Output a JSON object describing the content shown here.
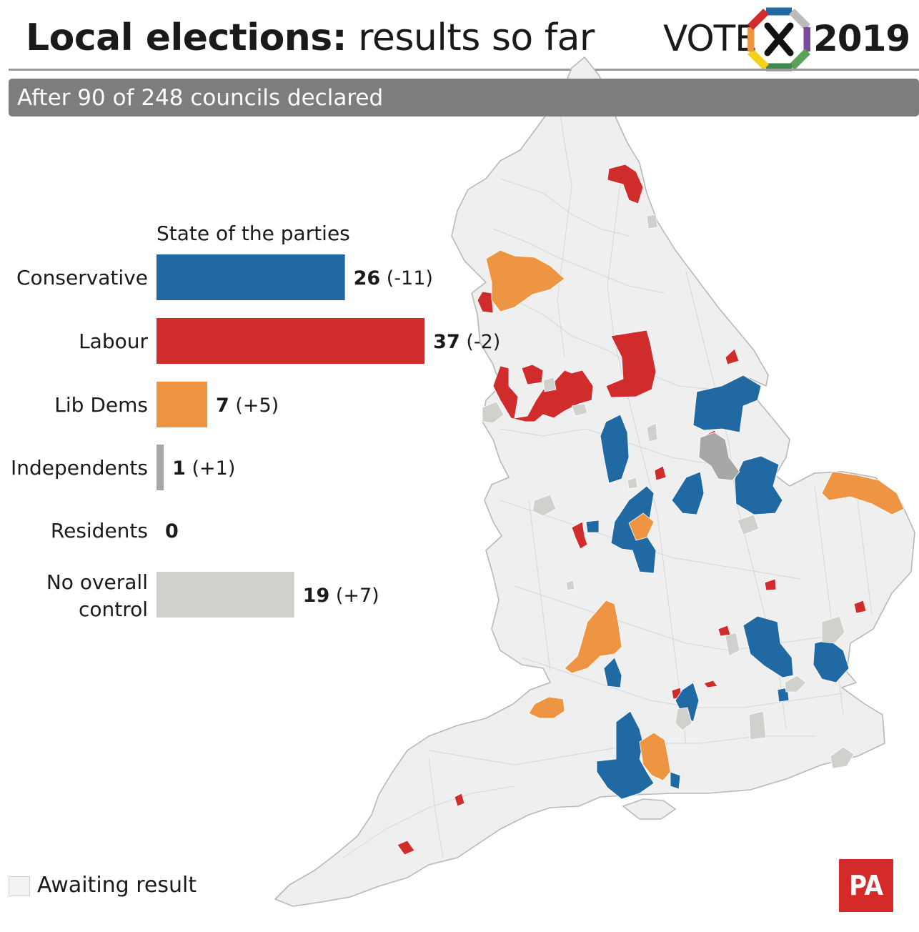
{
  "header": {
    "title_bold": "Local elections:",
    "title_rest": "results so far",
    "brand_word": "VOTE",
    "brand_year": "2019",
    "subtitle": "After 90 of 248 councils declared"
  },
  "colors": {
    "conservative": "#2169a3",
    "labour": "#d12c2c",
    "lib_dems": "#ee9543",
    "independents": "#a6a8a6",
    "residents": "#7fbf7f",
    "no_overall_control": "#ced1cc",
    "awaiting": "#f2f2f2"
  },
  "chart_data": {
    "type": "bar",
    "orientation": "horizontal",
    "title": "State of the parties",
    "categories": [
      "Conservative",
      "Labour",
      "Lib Dems",
      "Independents",
      "Residents",
      "No overall control"
    ],
    "values": [
      26,
      37,
      7,
      1,
      0,
      19
    ],
    "changes": [
      "(-11)",
      "(-2)",
      "(+5)",
      "(+1)",
      "",
      "(+7)"
    ],
    "legend": "left"
  },
  "legend": {
    "awaiting_label": "Awaiting result"
  },
  "footer": {
    "logo": "PA"
  }
}
